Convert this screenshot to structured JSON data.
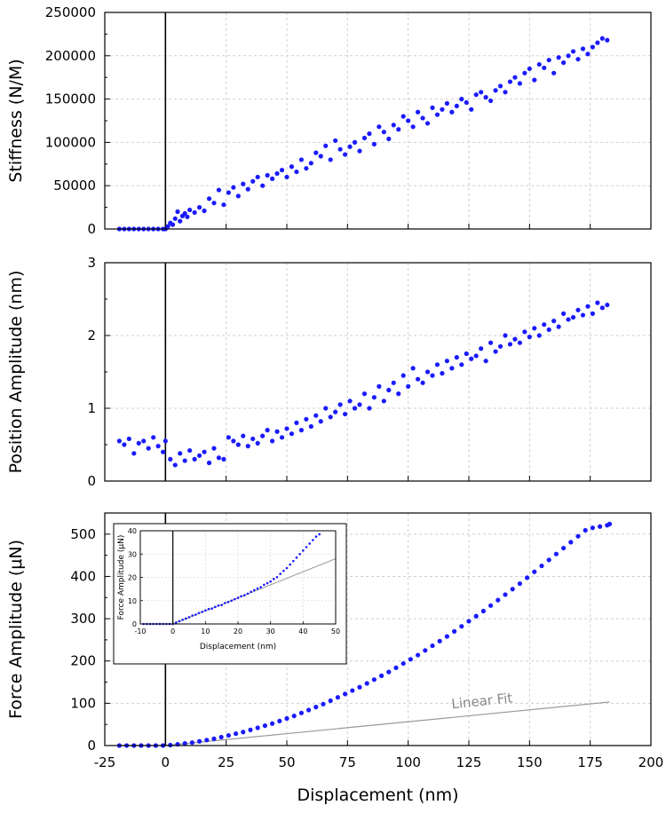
{
  "chart_data": [
    {
      "type": "scatter",
      "id": "stiffness",
      "ylabel": "Stiffness (N/M)",
      "xlim": [
        -25,
        200
      ],
      "ylim": [
        0,
        250000
      ],
      "grid": true,
      "y_ticks": [
        "0",
        "50000",
        "100000",
        "150000",
        "200000",
        "250000"
      ],
      "series": [
        {
          "color": "#1a1aff",
          "x": [
            -19,
            -17,
            -15,
            -13,
            -11,
            -9,
            -7,
            -5,
            -3,
            -1,
            0,
            1,
            2,
            3,
            4,
            5,
            6,
            7,
            8,
            9,
            10,
            12,
            14,
            16,
            18,
            20,
            22,
            24,
            26,
            28,
            30,
            32,
            34,
            36,
            38,
            40,
            42,
            44,
            46,
            48,
            50,
            52,
            54,
            56,
            58,
            60,
            62,
            64,
            66,
            68,
            70,
            72,
            74,
            76,
            78,
            80,
            82,
            84,
            86,
            88,
            90,
            92,
            94,
            96,
            98,
            100,
            102,
            104,
            106,
            108,
            110,
            112,
            114,
            116,
            118,
            120,
            122,
            124,
            126,
            128,
            130,
            132,
            134,
            136,
            138,
            140,
            142,
            144,
            146,
            148,
            150,
            152,
            154,
            156,
            158,
            160,
            162,
            164,
            166,
            168,
            170,
            172,
            174,
            176,
            178,
            180,
            182
          ],
          "y": [
            0,
            0,
            0,
            0,
            0,
            0,
            0,
            0,
            0,
            0,
            0,
            3000,
            7000,
            5000,
            12000,
            20000,
            9000,
            15000,
            18000,
            14000,
            22000,
            19000,
            25000,
            21000,
            35000,
            30000,
            45000,
            28000,
            42000,
            48000,
            38000,
            52000,
            46000,
            55000,
            60000,
            50000,
            62000,
            58000,
            64000,
            68000,
            60000,
            72000,
            66000,
            80000,
            70000,
            76000,
            88000,
            84000,
            96000,
            80000,
            102000,
            92000,
            86000,
            95000,
            100000,
            90000,
            105000,
            110000,
            98000,
            118000,
            112000,
            104000,
            120000,
            115000,
            130000,
            125000,
            118000,
            135000,
            128000,
            122000,
            140000,
            132000,
            138000,
            145000,
            135000,
            142000,
            150000,
            146000,
            138000,
            155000,
            158000,
            152000,
            148000,
            160000,
            165000,
            158000,
            170000,
            175000,
            168000,
            180000,
            185000,
            172000,
            190000,
            186000,
            195000,
            180000,
            198000,
            192000,
            200000,
            205000,
            196000,
            208000,
            202000,
            210000,
            215000,
            220000,
            218000
          ]
        }
      ]
    },
    {
      "type": "scatter",
      "id": "position-amplitude",
      "ylabel": "Position Amplitude (nm)",
      "xlim": [
        -25,
        200
      ],
      "ylim": [
        0,
        3
      ],
      "grid": true,
      "y_ticks": [
        "0",
        "1",
        "2",
        "3"
      ],
      "series": [
        {
          "color": "#1a1aff",
          "x": [
            -19,
            -17,
            -15,
            -13,
            -11,
            -9,
            -7,
            -5,
            -3,
            -1,
            0,
            2,
            4,
            6,
            8,
            10,
            12,
            14,
            16,
            18,
            20,
            22,
            24,
            26,
            28,
            30,
            32,
            34,
            36,
            38,
            40,
            42,
            44,
            46,
            48,
            50,
            52,
            54,
            56,
            58,
            60,
            62,
            64,
            66,
            68,
            70,
            72,
            74,
            76,
            78,
            80,
            82,
            84,
            86,
            88,
            90,
            92,
            94,
            96,
            98,
            100,
            102,
            104,
            106,
            108,
            110,
            112,
            114,
            116,
            118,
            120,
            122,
            124,
            126,
            128,
            130,
            132,
            134,
            136,
            138,
            140,
            142,
            144,
            146,
            148,
            150,
            152,
            154,
            156,
            158,
            160,
            162,
            164,
            166,
            168,
            170,
            172,
            174,
            176,
            178,
            180,
            182
          ],
          "y": [
            0.55,
            0.5,
            0.58,
            0.38,
            0.52,
            0.55,
            0.45,
            0.6,
            0.48,
            0.4,
            0.55,
            0.3,
            0.22,
            0.38,
            0.28,
            0.42,
            0.3,
            0.35,
            0.4,
            0.25,
            0.45,
            0.32,
            0.3,
            0.6,
            0.55,
            0.5,
            0.62,
            0.48,
            0.58,
            0.52,
            0.62,
            0.7,
            0.55,
            0.68,
            0.6,
            0.72,
            0.65,
            0.8,
            0.7,
            0.85,
            0.75,
            0.9,
            0.82,
            1.0,
            0.88,
            0.95,
            1.05,
            0.92,
            1.1,
            1.0,
            1.05,
            1.2,
            1.0,
            1.15,
            1.3,
            1.1,
            1.25,
            1.35,
            1.2,
            1.45,
            1.3,
            1.55,
            1.4,
            1.35,
            1.5,
            1.45,
            1.6,
            1.48,
            1.65,
            1.55,
            1.7,
            1.6,
            1.75,
            1.68,
            1.72,
            1.82,
            1.65,
            1.9,
            1.78,
            1.85,
            2.0,
            1.88,
            1.95,
            1.9,
            2.05,
            1.98,
            2.1,
            2.0,
            2.15,
            2.08,
            2.2,
            2.12,
            2.3,
            2.22,
            2.25,
            2.35,
            2.28,
            2.4,
            2.3,
            2.45,
            2.38,
            2.42
          ]
        }
      ]
    },
    {
      "type": "scatter",
      "id": "force-amplitude",
      "ylabel": "Force Amplitude (μN)",
      "xlabel": "Displacement (nm)",
      "xlim": [
        -25,
        200
      ],
      "ylim": [
        0,
        550
      ],
      "grid": true,
      "y_ticks": [
        "0",
        "100",
        "200",
        "300",
        "400",
        "500"
      ],
      "x_ticks": [
        "-25",
        "0",
        "25",
        "50",
        "75",
        "100",
        "125",
        "150",
        "175",
        "200"
      ],
      "series": [
        {
          "color": "#1a1aff",
          "x": [
            -19,
            -16,
            -13,
            -10,
            -7,
            -4,
            -1,
            2,
            5,
            8,
            11,
            14,
            17,
            20,
            23,
            26,
            29,
            32,
            35,
            38,
            41,
            44,
            47,
            50,
            53,
            56,
            59,
            62,
            65,
            68,
            71,
            74,
            77,
            80,
            83,
            86,
            89,
            92,
            95,
            98,
            101,
            104,
            107,
            110,
            113,
            116,
            119,
            122,
            125,
            128,
            131,
            134,
            137,
            140,
            143,
            146,
            149,
            152,
            155,
            158,
            161,
            164,
            167,
            170,
            173,
            176,
            179,
            182,
            183
          ],
          "y": [
            0,
            0,
            0,
            0,
            0,
            0,
            0,
            1,
            3,
            5,
            7,
            10,
            13,
            16,
            20,
            24,
            28,
            32,
            37,
            42,
            47,
            52,
            58,
            64,
            70,
            77,
            84,
            91,
            98,
            106,
            114,
            122,
            130,
            138,
            147,
            156,
            165,
            174,
            184,
            194,
            204,
            214,
            225,
            236,
            247,
            258,
            270,
            282,
            294,
            306,
            318,
            331,
            344,
            357,
            370,
            383,
            397,
            411,
            425,
            439,
            453,
            467,
            481,
            495,
            509,
            515,
            518,
            521,
            524
          ]
        }
      ],
      "linear_fit": {
        "label": "Linear Fit",
        "x": [
          -19,
          0,
          183
        ],
        "y": [
          0,
          0,
          103
        ],
        "color": "#999999"
      },
      "inset": {
        "type": "scatter",
        "xlabel": "Displacement (nm)",
        "ylabel": "Force Amplitude (μN)",
        "xlim": [
          -10,
          50
        ],
        "ylim": [
          0,
          40
        ],
        "x_ticks": [
          "-10",
          "0",
          "10",
          "20",
          "30",
          "40",
          "50"
        ],
        "y_ticks": [
          "0",
          "10",
          "20",
          "30",
          "40"
        ],
        "series": [
          {
            "color": "#1a1aff",
            "x": [
              -9,
              -8,
              -7,
              -6,
              -5,
              -4,
              -3,
              -2,
              -1,
              0,
              1,
              2,
              3,
              4,
              5,
              6,
              7,
              8,
              9,
              10,
              11,
              12,
              13,
              14,
              15,
              16,
              17,
              18,
              19,
              20,
              21,
              22,
              23,
              24,
              25,
              26,
              27,
              28,
              29,
              30,
              31,
              32,
              33,
              34,
              35,
              36,
              37,
              38,
              39,
              40,
              41,
              42,
              43,
              44,
              45
            ],
            "y": [
              0,
              0,
              0,
              0,
              0,
              0,
              0,
              0,
              0,
              0,
              0.6,
              1.2,
              1.8,
              2.3,
              2.9,
              3.6,
              4.0,
              4.7,
              5.2,
              5.8,
              6.4,
              6.6,
              7.3,
              7.9,
              8.1,
              9.0,
              9.4,
              10.0,
              10.6,
              11.2,
              11.9,
              12.3,
              13.0,
              13.8,
              14.5,
              15.2,
              15.8,
              16.8,
              17.5,
              18.2,
              19.3,
              20.1,
              21.5,
              22.8,
              24.0,
              25.5,
              27.0,
              28.5,
              30.0,
              31.5,
              33.0,
              34.5,
              36.0,
              37.5,
              38.5
            ]
          }
        ],
        "linear_fit": {
          "x": [
            -10,
            0,
            50
          ],
          "y": [
            0,
            0,
            28
          ]
        }
      }
    }
  ]
}
